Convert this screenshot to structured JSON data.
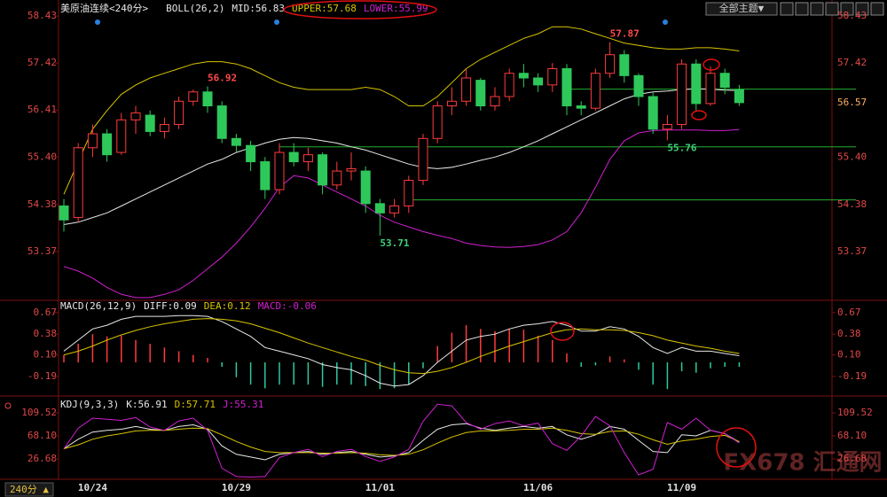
{
  "ui": {
    "theme_button": "全部主题▼",
    "period_button": "240分 ▲",
    "watermark": "FX678 汇通网"
  },
  "chart_data": [
    {
      "type": "candlestick",
      "title": "美原油连续<240分>",
      "indicator": "BOLL(26,2)",
      "categories": [
        null,
        null,
        "10/24",
        null,
        null,
        null,
        null,
        null,
        null,
        null,
        null,
        null,
        "10/29",
        null,
        null,
        null,
        null,
        null,
        null,
        null,
        null,
        null,
        "11/01",
        null,
        null,
        null,
        null,
        null,
        null,
        null,
        null,
        null,
        null,
        "11/06",
        null,
        null,
        null,
        null,
        null,
        null,
        null,
        null,
        null,
        "11/09",
        null,
        null,
        null,
        null
      ],
      "open": [
        54.35,
        54.1,
        55.6,
        55.9,
        55.5,
        56.2,
        56.3,
        55.95,
        56.1,
        56.6,
        56.8,
        56.5,
        55.8,
        55.65,
        55.3,
        54.7,
        55.5,
        55.3,
        55.45,
        54.8,
        55.1,
        55.1,
        54.4,
        54.2,
        54.35,
        54.9,
        55.8,
        56.5,
        56.6,
        57.05,
        56.5,
        56.7,
        57.2,
        57.1,
        56.95,
        57.3,
        56.5,
        56.45,
        57.2,
        57.6,
        57.15,
        56.7,
        56.0,
        56.1,
        57.4,
        56.55,
        57.2,
        56.85
      ],
      "high": [
        54.5,
        55.7,
        56.1,
        56.0,
        56.35,
        56.5,
        56.4,
        56.25,
        56.7,
        56.85,
        56.92,
        56.6,
        55.9,
        55.75,
        55.4,
        55.7,
        55.7,
        55.6,
        55.5,
        55.3,
        55.5,
        55.2,
        54.5,
        54.5,
        55.0,
        55.9,
        56.6,
        56.9,
        57.3,
        57.1,
        56.9,
        57.3,
        57.4,
        57.2,
        57.42,
        57.4,
        56.6,
        57.3,
        57.87,
        57.7,
        57.2,
        56.8,
        56.3,
        57.5,
        57.5,
        57.35,
        57.3,
        56.95
      ],
      "low": [
        53.8,
        54.0,
        55.4,
        55.3,
        55.45,
        55.9,
        55.85,
        55.8,
        56.0,
        56.5,
        56.35,
        55.7,
        55.5,
        55.1,
        54.5,
        54.6,
        55.2,
        55.1,
        54.6,
        54.7,
        54.9,
        54.2,
        53.71,
        54.1,
        54.2,
        54.8,
        55.7,
        56.3,
        56.5,
        56.4,
        56.4,
        56.6,
        56.9,
        56.8,
        56.8,
        56.3,
        56.3,
        56.4,
        57.1,
        57.0,
        56.5,
        55.9,
        55.76,
        56.0,
        56.4,
        56.5,
        56.75,
        56.5
      ],
      "close": [
        54.05,
        55.6,
        55.9,
        55.45,
        56.2,
        56.35,
        55.95,
        56.1,
        56.6,
        56.8,
        56.5,
        55.8,
        55.65,
        55.3,
        54.7,
        55.5,
        55.3,
        55.45,
        54.8,
        55.1,
        55.15,
        54.4,
        54.2,
        54.35,
        54.9,
        55.8,
        56.5,
        56.6,
        57.1,
        56.5,
        56.7,
        57.2,
        57.1,
        56.95,
        57.3,
        56.5,
        56.45,
        57.2,
        57.6,
        57.15,
        56.7,
        56.0,
        56.1,
        57.4,
        56.55,
        57.2,
        56.9,
        56.57
      ],
      "up_color": "#ff3b3b",
      "down_color": "#2ec85a",
      "series": [
        {
          "name": "MID",
          "readout": "MID:56.83",
          "color": "#e8e8e8",
          "values": [
            53.95,
            54.0,
            54.1,
            54.2,
            54.35,
            54.5,
            54.65,
            54.8,
            54.95,
            55.1,
            55.25,
            55.35,
            55.5,
            55.6,
            55.7,
            55.78,
            55.82,
            55.8,
            55.75,
            55.7,
            55.62,
            55.55,
            55.45,
            55.35,
            55.25,
            55.18,
            55.15,
            55.18,
            55.25,
            55.33,
            55.4,
            55.5,
            55.62,
            55.75,
            55.9,
            56.05,
            56.2,
            56.35,
            56.5,
            56.65,
            56.75,
            56.8,
            56.82,
            56.85,
            56.87,
            56.86,
            56.84,
            56.83
          ]
        },
        {
          "name": "UPPER",
          "readout": "UPPER:57.68",
          "color": "#d8c400",
          "values": [
            54.6,
            55.3,
            56.0,
            56.4,
            56.75,
            56.95,
            57.1,
            57.2,
            57.3,
            57.4,
            57.45,
            57.45,
            57.4,
            57.3,
            57.15,
            57.0,
            56.9,
            56.85,
            56.85,
            56.85,
            56.85,
            56.9,
            56.85,
            56.7,
            56.5,
            56.5,
            56.7,
            57.0,
            57.3,
            57.5,
            57.65,
            57.8,
            57.95,
            58.05,
            58.2,
            58.2,
            58.15,
            58.05,
            57.95,
            57.85,
            57.8,
            57.75,
            57.72,
            57.72,
            57.75,
            57.75,
            57.72,
            57.68
          ]
        },
        {
          "name": "LOWER",
          "readout": "LOWER:55.99",
          "color": "#d020d0",
          "values": [
            53.05,
            52.95,
            52.8,
            52.6,
            52.45,
            52.38,
            52.38,
            52.45,
            52.55,
            52.75,
            53.0,
            53.25,
            53.55,
            53.9,
            54.3,
            54.75,
            55.0,
            54.95,
            54.8,
            54.65,
            54.5,
            54.35,
            54.15,
            54.0,
            53.9,
            53.8,
            53.72,
            53.65,
            53.55,
            53.5,
            53.47,
            53.46,
            53.48,
            53.52,
            53.62,
            53.8,
            54.2,
            54.75,
            55.35,
            55.75,
            55.92,
            55.97,
            55.98,
            55.98,
            55.98,
            55.97,
            55.97,
            55.99
          ]
        }
      ],
      "annotations": [
        {
          "value": 56.92,
          "index": 10,
          "color": "#ff4a4a",
          "placement": "above"
        },
        {
          "value": 57.87,
          "index": 38,
          "color": "#ff4a4a",
          "placement": "above"
        },
        {
          "value": 53.71,
          "index": 22,
          "color": "#3ed07a",
          "placement": "below"
        },
        {
          "value": 55.76,
          "index": 42,
          "color": "#3ed07a",
          "placement": "below"
        }
      ],
      "levels": [
        {
          "value": 56.86,
          "start": 35
        },
        {
          "value": 55.62,
          "start": 15
        },
        {
          "value": 54.48,
          "start": 24
        }
      ],
      "level_color": "#22b030",
      "ylim": [
        52.36,
        58.68
      ],
      "yticks": [
        58.43,
        57.42,
        56.41,
        {
          "value": 55.4,
          "label": "55.40"
        },
        54.38,
        53.37
      ],
      "y2ticks": [
        58.43,
        57.42,
        {
          "value": 55.4,
          "label": "55.40"
        },
        54.38,
        53.37
      ],
      "last_price": 56.57
    },
    {
      "type": "combo",
      "title": "MACD(26,12,9)",
      "series": [
        {
          "name": "DIFF",
          "readout": "DIFF:0.09",
          "color": "#e8e8e8",
          "style": "line",
          "values": [
            0.15,
            0.3,
            0.45,
            0.5,
            0.58,
            0.62,
            0.62,
            0.62,
            0.63,
            0.63,
            0.62,
            0.55,
            0.45,
            0.35,
            0.2,
            0.15,
            0.1,
            0.05,
            -0.03,
            -0.07,
            -0.1,
            -0.18,
            -0.28,
            -0.32,
            -0.3,
            -0.18,
            0.0,
            0.15,
            0.3,
            0.35,
            0.38,
            0.45,
            0.5,
            0.52,
            0.55,
            0.5,
            0.42,
            0.42,
            0.48,
            0.45,
            0.35,
            0.2,
            0.12,
            0.2,
            0.15,
            0.15,
            0.12,
            0.09
          ]
        },
        {
          "name": "DEA",
          "readout": "DEA:0.12",
          "color": "#d8c400",
          "style": "line",
          "values": [
            0.1,
            0.15,
            0.22,
            0.3,
            0.37,
            0.43,
            0.48,
            0.52,
            0.55,
            0.58,
            0.59,
            0.58,
            0.56,
            0.52,
            0.46,
            0.4,
            0.33,
            0.26,
            0.2,
            0.14,
            0.08,
            0.03,
            -0.04,
            -0.1,
            -0.14,
            -0.15,
            -0.12,
            -0.07,
            0.0,
            0.08,
            0.15,
            0.22,
            0.28,
            0.34,
            0.4,
            0.44,
            0.45,
            0.44,
            0.44,
            0.43,
            0.4,
            0.36,
            0.3,
            0.26,
            0.22,
            0.19,
            0.15,
            0.12
          ]
        },
        {
          "name": "MACD",
          "readout": "MACD:-0.06",
          "color": "#d020d0",
          "style": "bar",
          "up_color": "#ff3b3b",
          "down_color": "#2ec8a0",
          "values": [
            0.1,
            0.25,
            0.38,
            0.35,
            0.36,
            0.3,
            0.25,
            0.2,
            0.15,
            0.1,
            0.06,
            -0.06,
            -0.2,
            -0.3,
            -0.35,
            -0.3,
            -0.3,
            -0.3,
            -0.33,
            -0.3,
            -0.3,
            -0.32,
            -0.36,
            -0.35,
            -0.3,
            -0.08,
            0.22,
            0.4,
            0.5,
            0.45,
            0.42,
            0.45,
            0.44,
            0.36,
            0.3,
            0.12,
            -0.06,
            -0.04,
            0.08,
            0.04,
            -0.1,
            -0.3,
            -0.36,
            -0.12,
            -0.14,
            -0.08,
            -0.06,
            -0.06
          ]
        }
      ],
      "ylim": [
        -0.37,
        0.8
      ],
      "yticks": [
        0.67,
        0.38,
        {
          "value": 0.1,
          "label": "0.10"
        },
        -0.19
      ]
    },
    {
      "type": "line",
      "title": "KDJ(9,3,3)",
      "series": [
        {
          "name": "K",
          "readout": "K:56.91",
          "color": "#e8e8e8",
          "values": [
            45,
            62,
            75,
            78,
            80,
            85,
            80,
            78,
            85,
            88,
            80,
            50,
            35,
            30,
            25,
            35,
            38,
            40,
            35,
            38,
            40,
            35,
            30,
            32,
            38,
            60,
            80,
            88,
            90,
            82,
            78,
            82,
            85,
            82,
            85,
            70,
            62,
            70,
            85,
            80,
            60,
            40,
            38,
            70,
            68,
            78,
            72,
            56.91
          ]
        },
        {
          "name": "D",
          "readout": "D:57.71",
          "color": "#d8c400",
          "values": [
            45,
            52,
            62,
            68,
            72,
            77,
            78,
            78,
            80,
            82,
            81,
            70,
            58,
            48,
            40,
            38,
            38,
            38,
            37,
            37,
            38,
            37,
            34,
            33,
            35,
            43,
            55,
            66,
            74,
            77,
            77,
            78,
            80,
            80,
            82,
            78,
            72,
            71,
            76,
            77,
            71,
            61,
            53,
            59,
            62,
            67,
            69,
            57.71
          ]
        },
        {
          "name": "J",
          "readout": "J:55.31",
          "color": "#d020d0",
          "values": [
            45,
            82,
            100,
            98,
            96,
            101,
            84,
            78,
            95,
            100,
            78,
            10,
            -5,
            -6,
            -5,
            29,
            38,
            44,
            31,
            40,
            44,
            31,
            22,
            30,
            44,
            94,
            125,
            122,
            92,
            80,
            90,
            95,
            86,
            91,
            54,
            42,
            68,
            103,
            86,
            38,
            -2,
            8,
            92,
            80,
            100,
            78,
            72,
            55.31
          ]
        }
      ],
      "ylim": [
        -8.4,
        131.8
      ],
      "yticks": [
        109.52,
        {
          "value": 68.1,
          "label": "68.10"
        },
        26.68
      ]
    }
  ]
}
